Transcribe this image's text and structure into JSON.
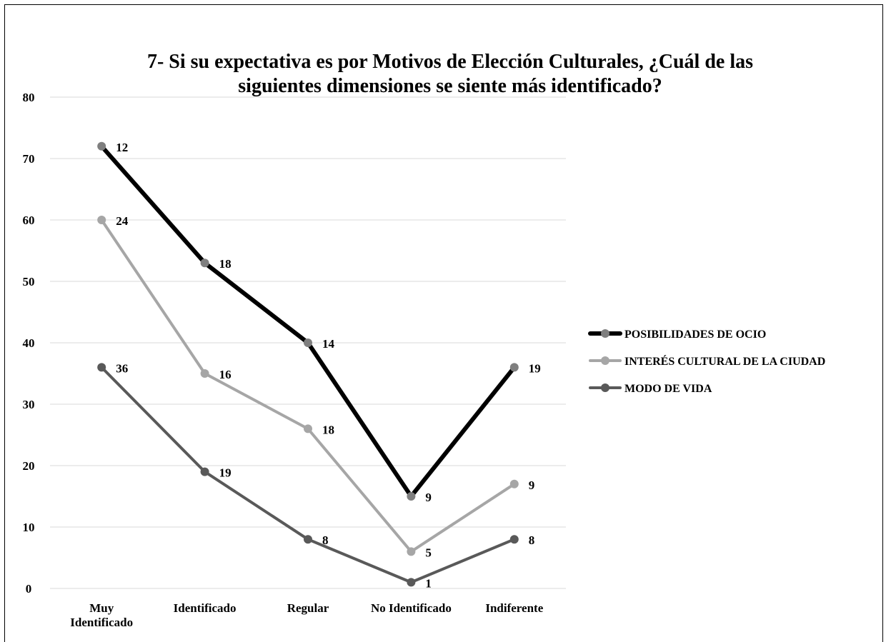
{
  "chart_data": {
    "type": "line",
    "title_lines": [
      "7- Si su expectativa es por Motivos de Elección Culturales, ¿Cuál de las",
      "siguientes dimensiones se siente más identificado?"
    ],
    "categories": [
      [
        "Muy",
        "Identificado"
      ],
      [
        "Identificado"
      ],
      [
        "Regular"
      ],
      [
        "No Identificado"
      ],
      [
        "Indiferente"
      ]
    ],
    "ylim": [
      0,
      80
    ],
    "yticks": [
      0,
      10,
      20,
      30,
      40,
      50,
      60,
      70,
      80
    ],
    "grid": true,
    "legend_position": "right",
    "series": [
      {
        "name": "POSIBILIDADES DE OCIO",
        "values": [
          72,
          53,
          40,
          15,
          36
        ],
        "labels": [
          "12",
          "18",
          "14",
          "9",
          "19"
        ],
        "line_color": "#000000",
        "marker_color": "#7f7f7f"
      },
      {
        "name": "INTERÉS CULTURAL DE LA CIUDAD",
        "values": [
          60,
          35,
          26,
          6,
          17
        ],
        "labels": [
          "24",
          "16",
          "18",
          "5",
          "9"
        ],
        "line_color": "#a6a6a6",
        "marker_color": "#a6a6a6"
      },
      {
        "name": "MODO DE VIDA",
        "values": [
          36,
          19,
          8,
          1,
          8
        ],
        "labels": [
          "36",
          "19",
          "8",
          "1",
          "8"
        ],
        "line_color": "#595959",
        "marker_color": "#595959"
      }
    ]
  }
}
